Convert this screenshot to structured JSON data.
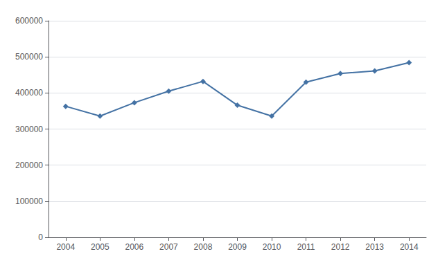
{
  "chart_data": {
    "type": "line",
    "x": [
      2004,
      2005,
      2006,
      2007,
      2008,
      2009,
      2010,
      2011,
      2012,
      2013,
      2014
    ],
    "values": [
      363000,
      336000,
      373000,
      405000,
      432000,
      366000,
      336000,
      430000,
      454000,
      461000,
      484000
    ],
    "color": "#4472a4",
    "marker": "diamond",
    "xlim": [
      2003.5,
      2014.5
    ],
    "xticks": [
      2004,
      2005,
      2006,
      2007,
      2008,
      2009,
      2010,
      2011,
      2012,
      2013,
      2014
    ],
    "ylim": [
      0,
      600000
    ],
    "yticks": [
      0,
      100000,
      200000,
      300000,
      400000,
      500000,
      600000
    ],
    "grid": true
  }
}
